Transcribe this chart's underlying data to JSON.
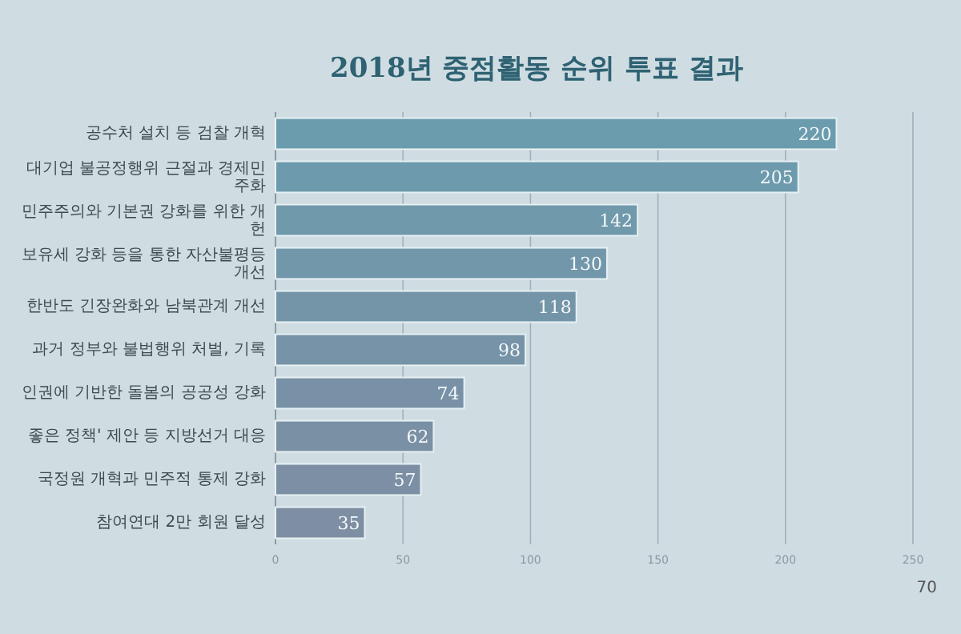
{
  "chart_data": {
    "type": "bar",
    "orientation": "horizontal",
    "title": "2018년 중점활동 순위 투표 결과",
    "categories": [
      "공수처 설치 등 검찰 개혁",
      "대기업 불공정행위 근절과 경제민주화",
      "민주주의와 기본권 강화를 위한 개헌",
      "보유세 강화 등을 통한 자산불평등 개선",
      "한반도 긴장완화와 남북관계 개선",
      "과거 정부와 불법행위 처벌, 기록",
      "인권에 기반한 돌봄의 공공성 강화",
      "좋은 정책' 제안 등 지방선거 대응",
      "국정원 개혁과 민주적 통제 강화",
      "참여연대 2만 회원 달성"
    ],
    "values": [
      220,
      205,
      142,
      130,
      118,
      98,
      74,
      62,
      57,
      35
    ],
    "colors": [
      "#6b9cae",
      "#6d9bad",
      "#7099ab",
      "#7297aa",
      "#7495a8",
      "#7693a7",
      "#7891a6",
      "#7a90a5",
      "#7c8fa4",
      "#7e8ea3"
    ],
    "xlim": [
      0,
      250
    ],
    "xticks": [
      0,
      50,
      100,
      150,
      200,
      250
    ],
    "grid": "x",
    "data_labels": true,
    "annotations": [
      "70"
    ]
  }
}
